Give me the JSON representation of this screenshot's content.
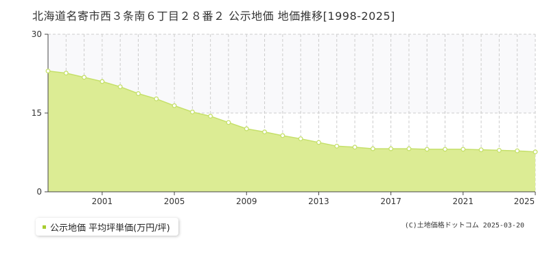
{
  "title": "北海道名寄市西３条南６丁目２８番２ 公示地価 地価推移[1998-2025]",
  "legend_label": "公示地価 平均坪単価(万円/坪)",
  "credit": "(C)土地価格ドットコム 2025-03-20",
  "colors": {
    "fill": "#dcec94",
    "line": "#c5e06a",
    "point": "#ffffff",
    "legend_marker": "#a8cc2f",
    "band": "#f9f9fb"
  },
  "chart_data": {
    "type": "area",
    "x": [
      1998,
      1999,
      2000,
      2001,
      2002,
      2003,
      2004,
      2005,
      2006,
      2007,
      2008,
      2009,
      2010,
      2011,
      2012,
      2013,
      2014,
      2015,
      2016,
      2017,
      2018,
      2019,
      2020,
      2021,
      2022,
      2023,
      2024,
      2025
    ],
    "series": [
      {
        "name": "公示地価 平均坪単価(万円/坪)",
        "values": [
          23.0,
          22.6,
          21.8,
          21.0,
          20.0,
          18.7,
          17.7,
          16.4,
          15.2,
          14.4,
          13.2,
          12.0,
          11.4,
          10.7,
          10.1,
          9.4,
          8.7,
          8.5,
          8.2,
          8.2,
          8.2,
          8.1,
          8.1,
          8.1,
          8.0,
          7.9,
          7.8,
          7.6
        ]
      }
    ],
    "x_tick_labels": [
      "2001",
      "2005",
      "2009",
      "2013",
      "2017",
      "2021",
      "2025"
    ],
    "y_tick_labels": [
      "0",
      "15",
      "30"
    ],
    "ylim": [
      0,
      30
    ],
    "xlim": [
      1998,
      2025
    ],
    "grid": true,
    "legend": "bottom-left"
  }
}
